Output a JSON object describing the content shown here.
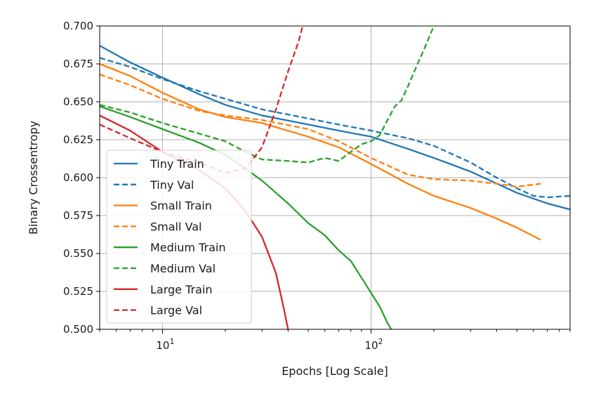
{
  "chart_data": {
    "type": "line",
    "title": "",
    "xlabel": "Epochs [Log Scale]",
    "ylabel": "Binary Crossentropy",
    "xscale": "log",
    "xlim": [
      5,
      900
    ],
    "ylim": [
      0.5,
      0.7
    ],
    "grid": true,
    "legend_position": "lower-left",
    "y_ticks": [
      "0.500",
      "0.525",
      "0.550",
      "0.575",
      "0.600",
      "0.625",
      "0.650",
      "0.675",
      "0.700"
    ],
    "x_ticks": [
      {
        "value": 10,
        "base": "10",
        "exp": "1"
      },
      {
        "value": 100,
        "base": "10",
        "exp": "2"
      }
    ],
    "series": [
      {
        "name": "Tiny Train",
        "color": "#1f77b4",
        "dash": false,
        "points": [
          [
            5,
            0.687
          ],
          [
            7,
            0.676
          ],
          [
            10,
            0.666
          ],
          [
            15,
            0.655
          ],
          [
            20,
            0.648
          ],
          [
            30,
            0.641
          ],
          [
            50,
            0.635
          ],
          [
            70,
            0.631
          ],
          [
            100,
            0.627
          ],
          [
            150,
            0.619
          ],
          [
            200,
            0.613
          ],
          [
            300,
            0.604
          ],
          [
            500,
            0.59
          ],
          [
            700,
            0.583
          ],
          [
            900,
            0.579
          ]
        ]
      },
      {
        "name": "Tiny Val",
        "color": "#1f77b4",
        "dash": true,
        "points": [
          [
            5,
            0.679
          ],
          [
            7,
            0.673
          ],
          [
            10,
            0.665
          ],
          [
            15,
            0.657
          ],
          [
            20,
            0.652
          ],
          [
            30,
            0.645
          ],
          [
            50,
            0.639
          ],
          [
            70,
            0.635
          ],
          [
            100,
            0.631
          ],
          [
            150,
            0.626
          ],
          [
            200,
            0.621
          ],
          [
            300,
            0.61
          ],
          [
            400,
            0.6
          ],
          [
            500,
            0.593
          ],
          [
            600,
            0.588
          ],
          [
            700,
            0.587
          ],
          [
            900,
            0.588
          ]
        ]
      },
      {
        "name": "Small Train",
        "color": "#ff7f0e",
        "dash": false,
        "points": [
          [
            5,
            0.675
          ],
          [
            7,
            0.667
          ],
          [
            10,
            0.656
          ],
          [
            15,
            0.645
          ],
          [
            20,
            0.64
          ],
          [
            30,
            0.636
          ],
          [
            50,
            0.627
          ],
          [
            70,
            0.62
          ],
          [
            100,
            0.609
          ],
          [
            150,
            0.596
          ],
          [
            200,
            0.588
          ],
          [
            300,
            0.58
          ],
          [
            400,
            0.573
          ],
          [
            500,
            0.567
          ],
          [
            650,
            0.559
          ]
        ]
      },
      {
        "name": "Small Val",
        "color": "#ff7f0e",
        "dash": true,
        "points": [
          [
            5,
            0.668
          ],
          [
            7,
            0.661
          ],
          [
            10,
            0.652
          ],
          [
            15,
            0.644
          ],
          [
            20,
            0.641
          ],
          [
            30,
            0.638
          ],
          [
            50,
            0.632
          ],
          [
            70,
            0.624
          ],
          [
            100,
            0.613
          ],
          [
            150,
            0.602
          ],
          [
            200,
            0.599
          ],
          [
            300,
            0.598
          ],
          [
            400,
            0.596
          ],
          [
            500,
            0.594
          ],
          [
            650,
            0.596
          ]
        ]
      },
      {
        "name": "Medium Train",
        "color": "#2ca02c",
        "dash": false,
        "points": [
          [
            5,
            0.647
          ],
          [
            7,
            0.64
          ],
          [
            10,
            0.632
          ],
          [
            15,
            0.623
          ],
          [
            20,
            0.615
          ],
          [
            25,
            0.606
          ],
          [
            30,
            0.598
          ],
          [
            40,
            0.583
          ],
          [
            50,
            0.57
          ],
          [
            60,
            0.562
          ],
          [
            70,
            0.552
          ],
          [
            80,
            0.545
          ],
          [
            90,
            0.534
          ],
          [
            100,
            0.524
          ],
          [
            110,
            0.515
          ],
          [
            120,
            0.504
          ],
          [
            125,
            0.5
          ]
        ]
      },
      {
        "name": "Medium Val",
        "color": "#2ca02c",
        "dash": true,
        "points": [
          [
            5,
            0.648
          ],
          [
            7,
            0.643
          ],
          [
            10,
            0.636
          ],
          [
            15,
            0.629
          ],
          [
            20,
            0.624
          ],
          [
            25,
            0.617
          ],
          [
            30,
            0.612
          ],
          [
            40,
            0.611
          ],
          [
            50,
            0.61
          ],
          [
            60,
            0.613
          ],
          [
            70,
            0.611
          ],
          [
            80,
            0.617
          ],
          [
            90,
            0.622
          ],
          [
            100,
            0.624
          ],
          [
            110,
            0.628
          ],
          [
            120,
            0.638
          ],
          [
            130,
            0.647
          ],
          [
            140,
            0.651
          ],
          [
            150,
            0.66
          ],
          [
            160,
            0.669
          ],
          [
            180,
            0.685
          ],
          [
            200,
            0.7
          ]
        ]
      },
      {
        "name": "Large Train",
        "color": "#d62728",
        "dash": false,
        "points": [
          [
            5,
            0.641
          ],
          [
            7,
            0.631
          ],
          [
            10,
            0.617
          ],
          [
            15,
            0.605
          ],
          [
            20,
            0.593
          ],
          [
            25,
            0.578
          ],
          [
            30,
            0.561
          ],
          [
            35,
            0.537
          ],
          [
            38,
            0.515
          ],
          [
            40,
            0.5
          ]
        ]
      },
      {
        "name": "Large Val",
        "color": "#d62728",
        "dash": true,
        "points": [
          [
            5,
            0.635
          ],
          [
            7,
            0.626
          ],
          [
            10,
            0.617
          ],
          [
            15,
            0.61
          ],
          [
            20,
            0.603
          ],
          [
            25,
            0.606
          ],
          [
            30,
            0.62
          ],
          [
            35,
            0.645
          ],
          [
            40,
            0.67
          ],
          [
            45,
            0.69
          ],
          [
            47,
            0.7
          ]
        ]
      }
    ]
  }
}
